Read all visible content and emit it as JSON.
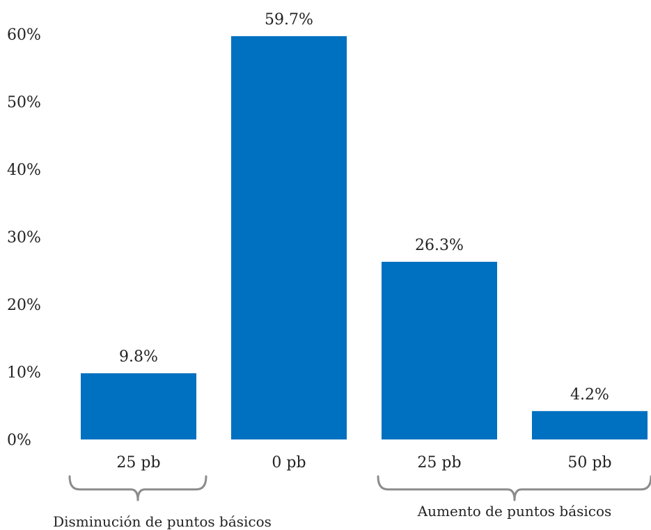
{
  "chart_data": {
    "type": "bar",
    "title": "",
    "xlabel": "",
    "ylabel": "",
    "categories": [
      "25 pb",
      "0 pb",
      "25 pb",
      "50 pb"
    ],
    "values": [
      9.8,
      59.7,
      26.3,
      4.2
    ],
    "value_labels": [
      "9.8%",
      "59.7%",
      "26.3%",
      "4.2%"
    ],
    "ylim": [
      0,
      60
    ],
    "yticks": [
      0,
      10,
      20,
      30,
      40,
      50,
      60
    ],
    "ytick_labels": [
      "0%",
      "10%",
      "20%",
      "30%",
      "40%",
      "50%",
      "60%"
    ],
    "grid": false,
    "bar_color": "#0070C0",
    "groups": [
      {
        "label": "Disminución de puntos básicos",
        "category_indices": [
          0
        ]
      },
      {
        "label": "Aumento de puntos básicos",
        "category_indices": [
          2,
          3
        ]
      }
    ]
  },
  "colors": {
    "bar": "#0070C0",
    "brace": "#8c8c8c",
    "text": "#222222"
  }
}
